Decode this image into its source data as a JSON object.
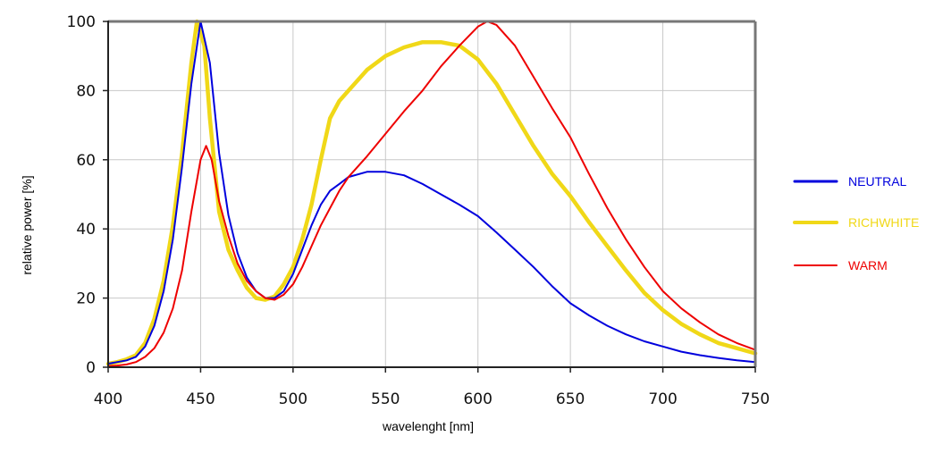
{
  "chart_data": {
    "type": "line",
    "title": "",
    "xlabel": "wavelenght [nm]",
    "ylabel": "relative power [%]",
    "xlim": [
      400,
      750
    ],
    "ylim": [
      0,
      100
    ],
    "xticks": [
      400,
      450,
      500,
      550,
      600,
      650,
      700,
      750
    ],
    "yticks": [
      0,
      20,
      40,
      60,
      80,
      100
    ],
    "grid": true,
    "legend_position": "right",
    "series": [
      {
        "name": "NEUTRAL",
        "color": "#0000dd",
        "x": [
          400,
          405,
          410,
          415,
          420,
          425,
          430,
          435,
          440,
          445,
          450,
          455,
          460,
          465,
          470,
          475,
          480,
          485,
          490,
          495,
          500,
          505,
          510,
          515,
          520,
          525,
          530,
          540,
          550,
          560,
          570,
          580,
          590,
          600,
          610,
          620,
          630,
          640,
          650,
          660,
          670,
          680,
          690,
          700,
          710,
          720,
          730,
          740,
          750
        ],
        "y": [
          1,
          1.5,
          2,
          3,
          6,
          12,
          22,
          37,
          58,
          82,
          100,
          88,
          62,
          44,
          33,
          26,
          22,
          20,
          20,
          22,
          27,
          34,
          41,
          47,
          51,
          53,
          55,
          56.5,
          56.5,
          55.5,
          53,
          50,
          47,
          43.7,
          39,
          34,
          29,
          23.5,
          18.5,
          15,
          12,
          9.5,
          7.5,
          6,
          4.5,
          3.5,
          2.7,
          2,
          1.5
        ]
      },
      {
        "name": "RICHWHITE",
        "color": "#f0d818",
        "x": [
          400,
          405,
          410,
          415,
          420,
          425,
          430,
          435,
          440,
          445,
          448,
          452,
          455,
          460,
          465,
          470,
          475,
          480,
          485,
          490,
          495,
          500,
          505,
          510,
          515,
          520,
          525,
          530,
          540,
          550,
          560,
          570,
          580,
          590,
          600,
          610,
          620,
          630,
          640,
          650,
          660,
          670,
          680,
          690,
          700,
          710,
          720,
          730,
          740,
          750
        ],
        "y": [
          1,
          1.5,
          2.3,
          3.5,
          7,
          14,
          25,
          41,
          62,
          88,
          100,
          93,
          72,
          45,
          34,
          28,
          23,
          20,
          19.5,
          20.5,
          24,
          29,
          37,
          47,
          60,
          72,
          77,
          80,
          86,
          90,
          92.5,
          94,
          94,
          93,
          89,
          82,
          73,
          64,
          56,
          49.5,
          42,
          35,
          28,
          21.5,
          16.5,
          12.5,
          9.5,
          7,
          5.5,
          4
        ]
      },
      {
        "name": "WARM",
        "color": "#ee0000",
        "x": [
          400,
          405,
          410,
          415,
          420,
          425,
          430,
          435,
          440,
          445,
          450,
          453,
          456,
          460,
          465,
          470,
          475,
          480,
          485,
          490,
          495,
          500,
          505,
          510,
          515,
          520,
          525,
          530,
          540,
          550,
          560,
          570,
          580,
          590,
          600,
          605,
          610,
          620,
          630,
          640,
          650,
          660,
          670,
          680,
          690,
          700,
          710,
          720,
          730,
          740,
          750
        ],
        "y": [
          0.3,
          0.5,
          0.8,
          1.5,
          3,
          5.5,
          10,
          17,
          28,
          45,
          60,
          64,
          60,
          48,
          38,
          30,
          25,
          22,
          20,
          19.5,
          21,
          24,
          29,
          35,
          41,
          46,
          51,
          55,
          61,
          67.5,
          74,
          80,
          87,
          93,
          98.5,
          100,
          99,
          93,
          84,
          75,
          66.5,
          56,
          46,
          37,
          29,
          22,
          17,
          13,
          9.5,
          7,
          5
        ]
      }
    ]
  }
}
